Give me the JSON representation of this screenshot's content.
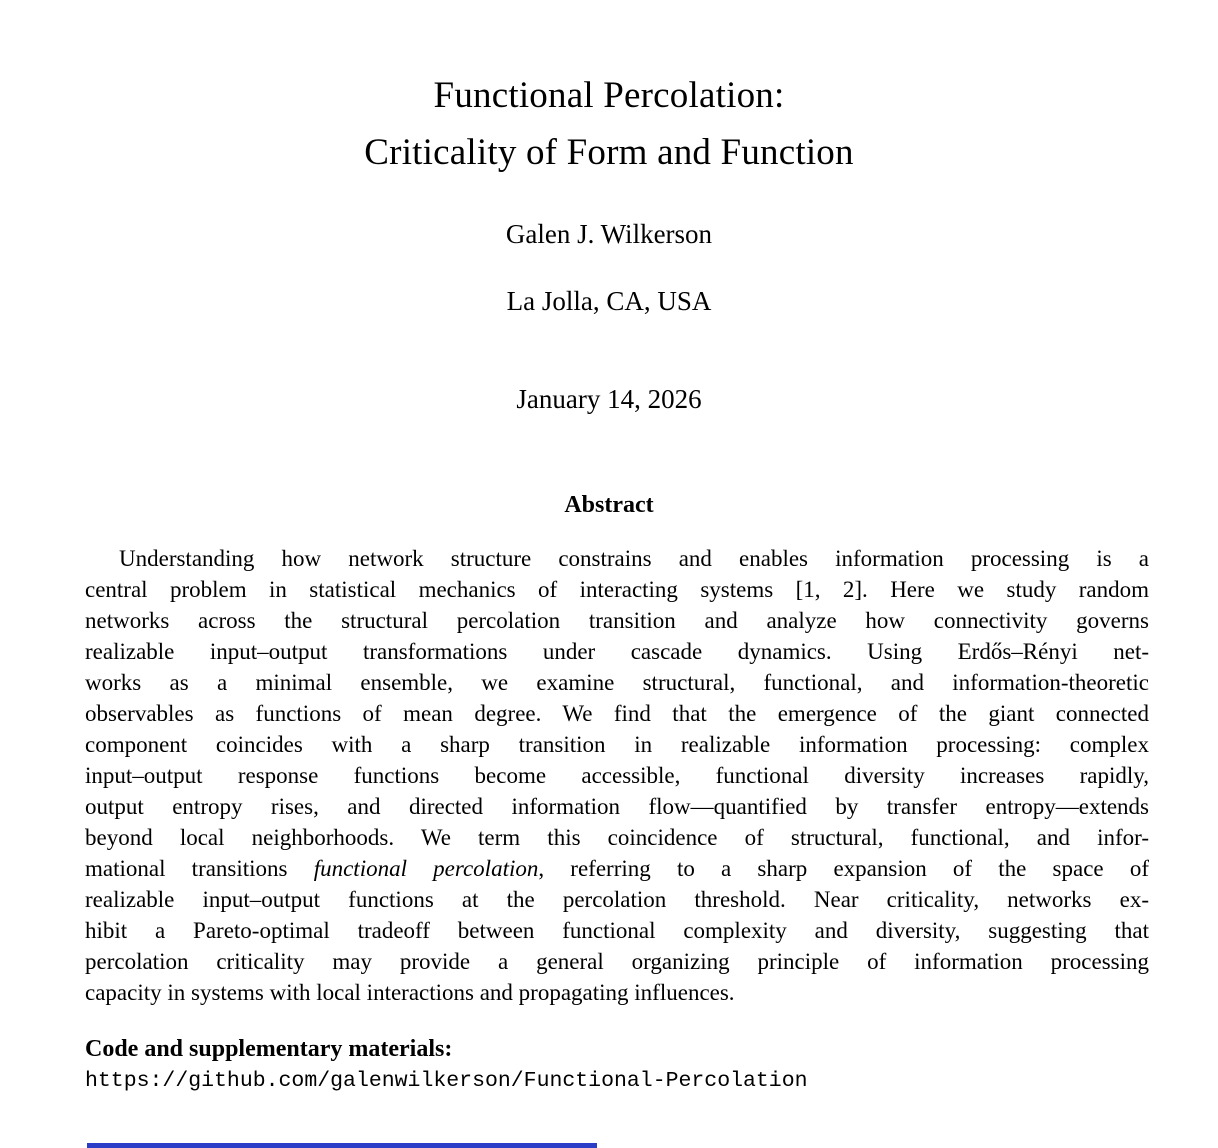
{
  "paper": {
    "title_line1": "Functional Percolation:",
    "title_line2": "Criticality of Form and Function",
    "author": "Galen J. Wilkerson",
    "affiliation": "La Jolla, CA, USA",
    "date": "January 14, 2026"
  },
  "abstract": {
    "heading": "Abstract",
    "lines": [
      {
        "indent": true,
        "text": "Understanding how network structure constrains and enables information processing is a"
      },
      {
        "text": "central problem in statistical mechanics of interacting systems [1, 2]. Here we study random"
      },
      {
        "text": "networks across the structural percolation transition and analyze how connectivity governs"
      },
      {
        "text": "realizable input–output transformations under cascade dynamics. Using Erdős–Rényi net-"
      },
      {
        "text": "works as a minimal ensemble, we examine structural, functional, and information-theoretic"
      },
      {
        "text": "observables as functions of mean degree. We find that the emergence of the giant connected"
      },
      {
        "text": "component coincides with a sharp transition in realizable information processing: complex"
      },
      {
        "text": "input–output response functions become accessible, functional diversity increases rapidly,"
      },
      {
        "text": "output entropy rises, and directed information flow—quantified by transfer entropy—extends"
      },
      {
        "text": "beyond local neighborhoods. We term this coincidence of structural, functional, and infor-"
      },
      {
        "pre": "mational transitions ",
        "italic": "functional percolation",
        "post": ", referring to a sharp expansion of the space of"
      },
      {
        "text": "realizable input–output functions at the percolation threshold. Near criticality, networks ex-"
      },
      {
        "text": "hibit a Pareto-optimal tradeoff between functional complexity and diversity, suggesting that"
      },
      {
        "text": "percolation criticality may provide a general organizing principle of information processing"
      },
      {
        "last": true,
        "text": "capacity in systems with local interactions and propagating influences."
      }
    ]
  },
  "footer": {
    "code_heading": "Code and supplementary materials:",
    "repo_url": "https://github.com/galenwilkerson/Functional-Percolation",
    "link_bar_color": "#2b3cc6"
  }
}
